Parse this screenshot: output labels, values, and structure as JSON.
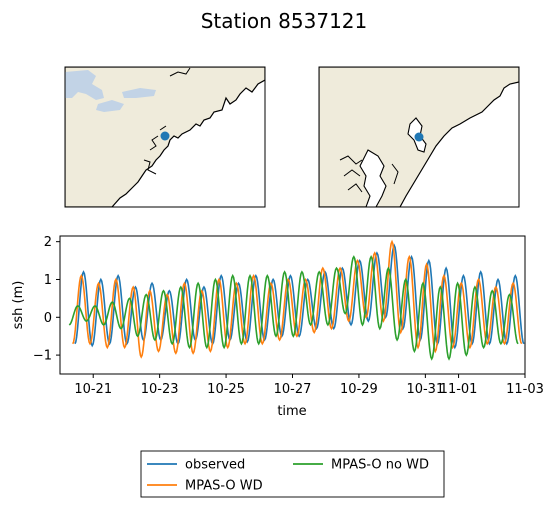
{
  "figure": {
    "title": "Station 8537121"
  },
  "maps": [
    {
      "name": "regional",
      "land_color": "#efebdb",
      "lake_color": "#c2d3e6",
      "marker_color": "#1f77b4"
    },
    {
      "name": "local",
      "land_color": "#efebdb",
      "marker_color": "#1f77b4"
    }
  ],
  "chart_data": {
    "type": "line",
    "xlabel": "time",
    "ylabel": "ssh (m)",
    "xlim": [
      "10-20",
      "11-03"
    ],
    "ylim": [
      -1.5,
      2.15
    ],
    "x_ticks": [
      "10-21",
      "10-23",
      "10-25",
      "10-27",
      "10-29",
      "10-31",
      "11-01",
      "11-03"
    ],
    "y_ticks": [
      "−1",
      "0",
      "1",
      "2"
    ],
    "grid": false,
    "legend_placement": "below plot",
    "series": [
      {
        "name": "observed",
        "color": "#1f77b4",
        "period_hours": 12.42,
        "peak_x": [
          [
            "10-20 17:00",
            1.2
          ],
          [
            "10-21 05:30",
            1.0
          ],
          [
            "10-21 18:00",
            1.1
          ],
          [
            "10-22 06:30",
            0.8
          ],
          [
            "10-22 18:30",
            0.9
          ],
          [
            "10-23 07:00",
            0.7
          ],
          [
            "10-23 19:30",
            1.0
          ],
          [
            "10-24 08:00",
            0.8
          ],
          [
            "10-24 20:30",
            1.1
          ],
          [
            "10-25 09:00",
            0.9
          ],
          [
            "10-25 21:30",
            1.1
          ],
          [
            "10-26 10:00",
            1.0
          ],
          [
            "10-26 22:30",
            1.1
          ],
          [
            "10-27 11:00",
            1.0
          ],
          [
            "10-27 23:30",
            1.2
          ],
          [
            "10-28 12:00",
            1.3
          ],
          [
            "10-29 00:30",
            1.5
          ],
          [
            "10-29 13:00",
            1.7
          ],
          [
            "10-30 01:30",
            1.9
          ],
          [
            "10-30 14:00",
            1.6
          ],
          [
            "10-31 02:30",
            1.5
          ],
          [
            "10-31 15:00",
            1.3
          ],
          [
            "11-01 03:30",
            1.1
          ],
          [
            "11-01 16:00",
            1.2
          ],
          [
            "11-02 04:30",
            1.0
          ],
          [
            "11-02 17:00",
            1.1
          ]
        ],
        "trough_values": [
          -0.7,
          -0.75,
          -0.7,
          -0.7,
          -0.6,
          -0.6,
          -0.7,
          -0.6,
          -0.7,
          -0.6,
          -0.65,
          -0.6,
          -0.5,
          -0.5,
          -0.3,
          -0.3,
          -0.2,
          -0.1,
          0.0,
          -0.3,
          -0.6,
          -0.7,
          -0.8,
          -0.7,
          -0.7,
          -0.7
        ]
      },
      {
        "name": "MPAS-O WD",
        "color": "#ff7f0e",
        "phase_lead_hours": 1.6,
        "peak_values": [
          1.1,
          0.9,
          1.0,
          0.8,
          0.7,
          0.6,
          0.9,
          0.7,
          1.0,
          0.9,
          1.1,
          0.9,
          1.0,
          1.0,
          1.3,
          1.3,
          1.5,
          1.7,
          2.0,
          1.6,
          1.4,
          1.1,
          0.9,
          1.0,
          0.8,
          0.9
        ],
        "trough_values": [
          -0.7,
          -0.7,
          -0.8,
          -0.8,
          -1.05,
          -0.9,
          -0.95,
          -0.95,
          -0.9,
          -0.8,
          -0.7,
          -0.7,
          -0.6,
          -0.5,
          -0.4,
          -0.3,
          -0.1,
          0.0,
          -0.1,
          -0.4,
          -0.8,
          -0.9,
          -0.8,
          -0.8,
          -0.7,
          -0.7
        ]
      },
      {
        "name": "MPAS-O no WD",
        "color": "#2ca02c",
        "phase_lead_hours": 4.2,
        "peak_values": [
          0.3,
          0.3,
          0.4,
          0.5,
          0.6,
          0.7,
          0.8,
          0.9,
          1.0,
          1.1,
          1.1,
          1.1,
          1.2,
          1.2,
          1.2,
          1.3,
          1.6,
          1.6,
          1.3,
          1.0,
          0.9,
          0.8,
          0.9,
          0.8,
          0.7,
          0.6
        ],
        "trough_values": [
          -0.2,
          -0.1,
          -0.2,
          -0.3,
          -0.5,
          -0.6,
          -0.7,
          -0.8,
          -0.8,
          -0.8,
          -0.7,
          -0.7,
          -0.5,
          -0.5,
          -0.2,
          -0.2,
          0.1,
          -0.2,
          -0.3,
          -0.6,
          -0.9,
          -1.1,
          -1.1,
          -1.0,
          -0.8,
          -0.7
        ]
      }
    ]
  }
}
